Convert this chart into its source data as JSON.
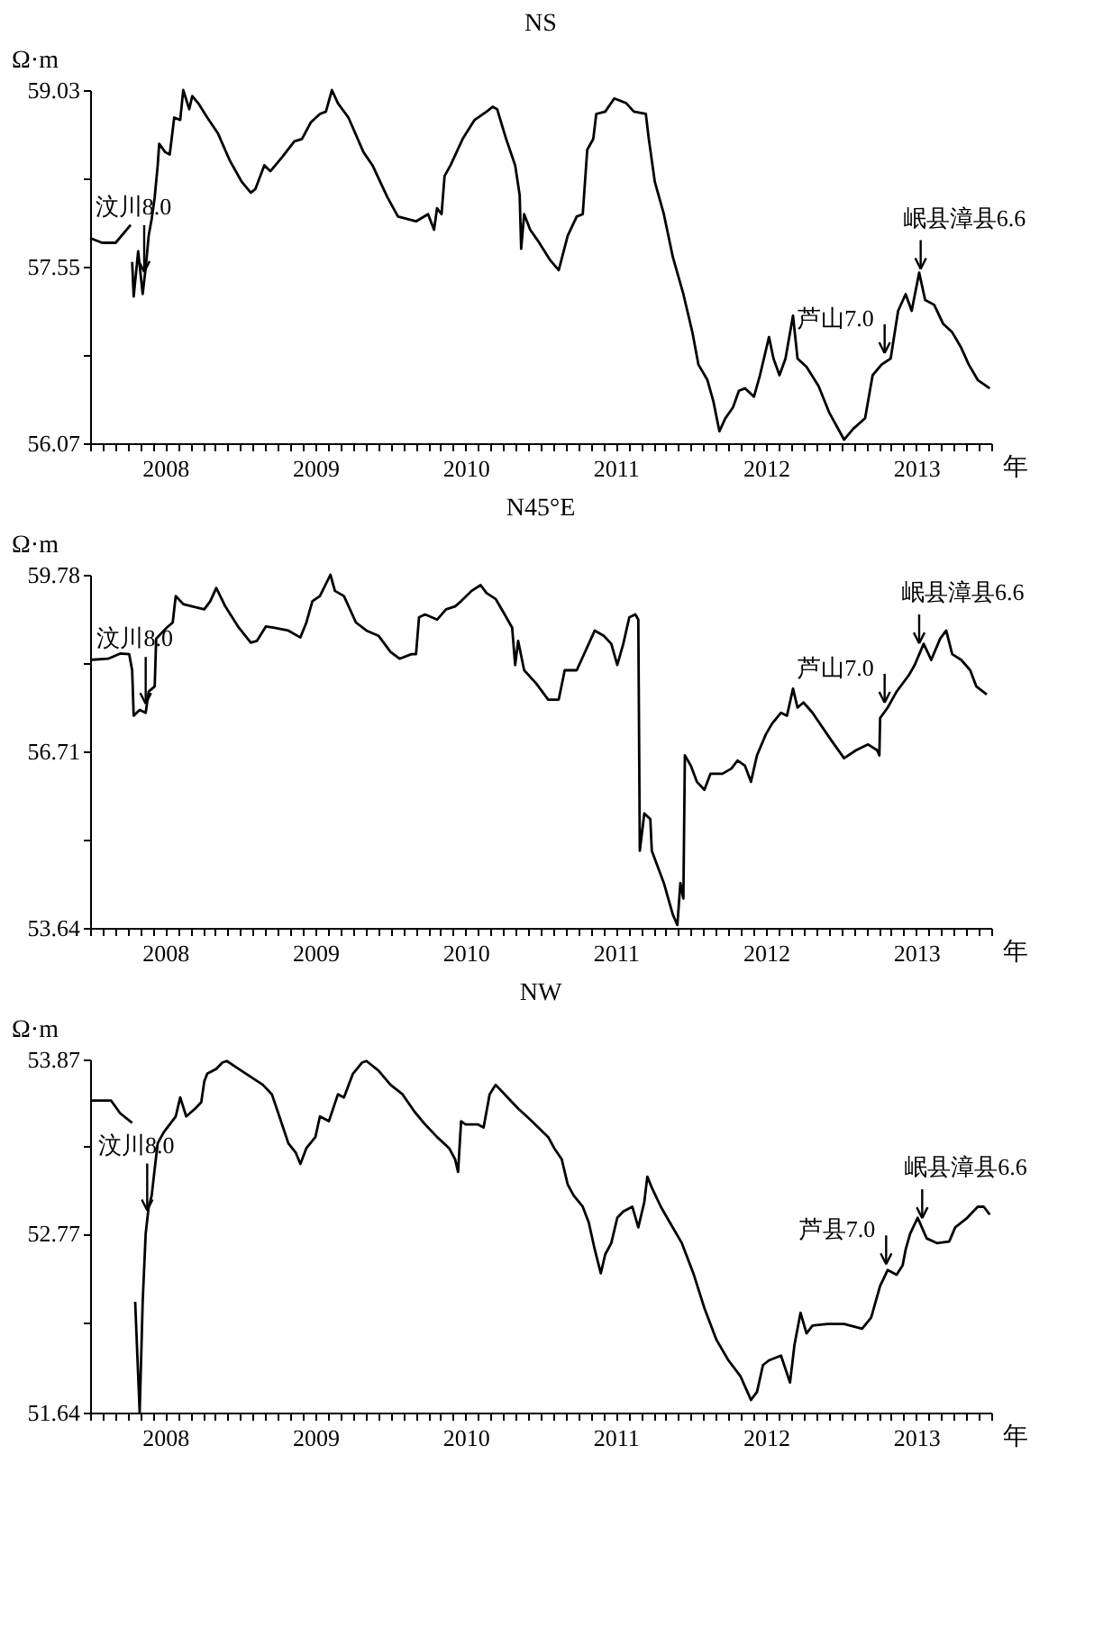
{
  "chart_data": [
    {
      "type": "line",
      "title": "NS",
      "ylabel": "Ω·m",
      "xlabel": "年",
      "x": [
        2008.0,
        2008.08,
        2008.17,
        2008.27,
        2008.275,
        2008.28,
        2008.29,
        2008.32,
        2008.35,
        2008.37,
        2008.39,
        2008.41,
        2008.43,
        2008.45,
        2008.46,
        2008.5,
        2008.53,
        2008.56,
        2008.6,
        2008.62,
        2008.66,
        2008.68,
        2008.72,
        2008.78,
        2008.85,
        2008.93,
        2009.01,
        2009.07,
        2009.1,
        2009.16,
        2009.2,
        2009.28,
        2009.36,
        2009.41,
        2009.47,
        2009.53,
        2009.57,
        2009.61,
        2009.65,
        2009.72,
        2009.82,
        2009.88,
        2009.98,
        2010.05,
        2010.17,
        2010.25,
        2010.29,
        2010.31,
        2010.34,
        2010.36,
        2010.4,
        2010.48,
        2010.56,
        2010.64,
        2010.68,
        2010.71,
        2010.77,
        2010.83,
        2010.86,
        2010.87,
        2010.89,
        2010.93,
        2010.98,
        2011.06,
        2011.12,
        2011.18,
        2011.24,
        2011.28,
        2011.31,
        2011.35,
        2011.37,
        2011.43,
        2011.49,
        2011.57,
        2011.62,
        2011.7,
        2011.72,
        2011.76,
        2011.82,
        2011.88,
        2011.95,
        2012.01,
        2012.05,
        2012.11,
        2012.15,
        2012.19,
        2012.23,
        2012.28,
        2012.32,
        2012.36,
        2012.42,
        2012.46,
        2012.52,
        2012.55,
        2012.59,
        2012.63,
        2012.68,
        2012.71,
        2012.77,
        2012.85,
        2012.92,
        2013.02,
        2013.08,
        2013.16,
        2013.21,
        2013.27,
        2013.33,
        2013.38,
        2013.43,
        2013.47,
        2013.52,
        2013.56,
        2013.62,
        2013.68,
        2013.74,
        2013.8,
        2013.85,
        2013.91,
        2013.99
      ],
      "series": [
        {
          "color": "#000000",
          "values": [
            57.79,
            57.75,
            57.75,
            57.9,
            null,
            57.59,
            57.3,
            57.68,
            57.32,
            57.54,
            57.81,
            57.95,
            58.13,
            58.4,
            58.58,
            58.51,
            58.49,
            58.8,
            58.78,
            59.03,
            58.87,
            58.98,
            58.92,
            58.8,
            58.67,
            58.44,
            58.26,
            58.17,
            58.2,
            58.4,
            58.35,
            58.47,
            58.6,
            58.62,
            58.76,
            58.83,
            58.85,
            59.03,
            58.92,
            58.8,
            58.51,
            58.4,
            58.13,
            57.97,
            57.93,
            57.99,
            57.86,
            58.04,
            57.99,
            58.31,
            58.4,
            58.62,
            58.78,
            58.85,
            58.89,
            58.87,
            58.62,
            58.4,
            58.15,
            57.7,
            57.99,
            57.86,
            57.77,
            57.61,
            57.52,
            57.81,
            57.97,
            57.99,
            58.53,
            58.62,
            58.83,
            58.85,
            58.96,
            58.92,
            58.85,
            58.83,
            58.62,
            58.26,
            57.99,
            57.63,
            57.32,
            57.0,
            56.73,
            56.6,
            56.42,
            56.17,
            56.28,
            56.37,
            56.51,
            56.53,
            56.46,
            56.64,
            56.96,
            56.78,
            56.64,
            56.78,
            57.14,
            56.78,
            56.71,
            56.55,
            56.33,
            56.1,
            56.19,
            56.28,
            56.64,
            56.73,
            56.78,
            57.18,
            57.32,
            57.18,
            57.5,
            57.27,
            57.23,
            57.07,
            57.0,
            56.87,
            56.73,
            56.6,
            56.53
          ]
        }
      ],
      "xlim": [
        2008,
        2014
      ],
      "xticks": [
        {
          "value": 2008,
          "label": null
        },
        {
          "value": 2008.083,
          "label": null
        },
        {
          "value": 2008.167,
          "label": null
        },
        {
          "value": 2008.25,
          "label": null
        },
        {
          "value": 2008.333,
          "label": null
        },
        {
          "value": 2008.417,
          "label": null
        },
        {
          "value": 2008.5,
          "label": "2008"
        },
        {
          "value": 2008.583,
          "label": null
        },
        {
          "value": 2008.667,
          "label": null
        },
        {
          "value": 2008.75,
          "label": null
        },
        {
          "value": 2008.833,
          "label": null
        },
        {
          "value": 2008.917,
          "label": null
        },
        {
          "value": 2009,
          "label": null
        },
        {
          "value": 2009.083,
          "label": null
        },
        {
          "value": 2009.167,
          "label": null
        },
        {
          "value": 2009.25,
          "label": null
        },
        {
          "value": 2009.333,
          "label": null
        },
        {
          "value": 2009.417,
          "label": null
        },
        {
          "value": 2009.5,
          "label": "2009"
        },
        {
          "value": 2009.583,
          "label": null
        },
        {
          "value": 2009.667,
          "label": null
        },
        {
          "value": 2009.75,
          "label": null
        },
        {
          "value": 2009.833,
          "label": null
        },
        {
          "value": 2009.917,
          "label": null
        },
        {
          "value": 2010,
          "label": null
        },
        {
          "value": 2010.083,
          "label": null
        },
        {
          "value": 2010.167,
          "label": null
        },
        {
          "value": 2010.25,
          "label": null
        },
        {
          "value": 2010.333,
          "label": null
        },
        {
          "value": 2010.417,
          "label": null
        },
        {
          "value": 2010.5,
          "label": "2010"
        },
        {
          "value": 2010.583,
          "label": null
        },
        {
          "value": 2010.667,
          "label": null
        },
        {
          "value": 2010.75,
          "label": null
        },
        {
          "value": 2010.833,
          "label": null
        },
        {
          "value": 2010.917,
          "label": null
        },
        {
          "value": 2011,
          "label": null
        },
        {
          "value": 2011.083,
          "label": null
        },
        {
          "value": 2011.167,
          "label": null
        },
        {
          "value": 2011.25,
          "label": null
        },
        {
          "value": 2011.333,
          "label": null
        },
        {
          "value": 2011.417,
          "label": null
        },
        {
          "value": 2011.5,
          "label": "2011"
        },
        {
          "value": 2011.583,
          "label": null
        },
        {
          "value": 2011.667,
          "label": null
        },
        {
          "value": 2011.75,
          "label": null
        },
        {
          "value": 2011.833,
          "label": null
        },
        {
          "value": 2011.917,
          "label": null
        },
        {
          "value": 2012,
          "label": null
        },
        {
          "value": 2012.083,
          "label": null
        },
        {
          "value": 2012.167,
          "label": null
        },
        {
          "value": 2012.25,
          "label": null
        },
        {
          "value": 2012.333,
          "label": null
        },
        {
          "value": 2012.417,
          "label": null
        },
        {
          "value": 2012.5,
          "label": "2012"
        },
        {
          "value": 2012.583,
          "label": null
        },
        {
          "value": 2012.667,
          "label": null
        },
        {
          "value": 2012.75,
          "label": null
        },
        {
          "value": 2012.833,
          "label": null
        },
        {
          "value": 2012.917,
          "label": null
        },
        {
          "value": 2013,
          "label": null
        },
        {
          "value": 2013.083,
          "label": null
        },
        {
          "value": 2013.167,
          "label": null
        },
        {
          "value": 2013.25,
          "label": null
        },
        {
          "value": 2013.333,
          "label": null
        },
        {
          "value": 2013.417,
          "label": null
        },
        {
          "value": 2013.5,
          "label": "2013"
        },
        {
          "value": 2013.583,
          "label": null
        },
        {
          "value": 2013.667,
          "label": null
        },
        {
          "value": 2013.75,
          "label": null
        },
        {
          "value": 2013.833,
          "label": null
        },
        {
          "value": 2013.917,
          "label": null
        },
        {
          "value": 2014,
          "label": null
        }
      ],
      "ylim": [
        56.07,
        59.03
      ],
      "yticks": [
        56.07,
        {
          "value": 56.81,
          "label": null
        },
        57.55,
        {
          "value": 58.29,
          "label": null
        },
        59.03
      ],
      "annotations": [
        {
          "text": "汶川8.0",
          "x": 2008.36,
          "y": 57.43
        },
        {
          "text": "芦山7.0",
          "x": 2013.29,
          "y": 56.75
        },
        {
          "text": "岷县漳县6.6",
          "x": 2013.53,
          "y": 57.44
        }
      ]
    },
    {
      "type": "line",
      "title": "N45°E",
      "ylabel": "Ω·m",
      "xlabel": "年",
      "x": [
        2008.0,
        2008.12,
        2008.2,
        2008.26,
        2008.28,
        2008.29,
        2008.33,
        2008.37,
        2008.39,
        2008.43,
        2008.44,
        2008.51,
        2008.55,
        2008.57,
        2008.62,
        2008.68,
        2008.76,
        2008.8,
        2008.84,
        2008.9,
        2008.99,
        2009.07,
        2009.11,
        2009.17,
        2009.22,
        2009.32,
        2009.4,
        2009.44,
        2009.48,
        2009.53,
        2009.6,
        2009.63,
        2009.69,
        2009.77,
        2009.84,
        2009.92,
        2010.0,
        2010.06,
        2010.14,
        2010.17,
        2010.19,
        2010.23,
        2010.31,
        2010.37,
        2010.43,
        2010.47,
        2010.54,
        2010.6,
        2010.64,
        2010.7,
        2010.76,
        2010.81,
        2010.83,
        2010.85,
        2010.89,
        2010.97,
        2011.05,
        2011.12,
        2011.16,
        2011.24,
        2011.32,
        2011.36,
        2011.42,
        2011.47,
        2011.51,
        2011.55,
        2011.59,
        2011.63,
        2011.65,
        2011.66,
        2011.69,
        2011.73,
        2011.74,
        2011.82,
        2011.88,
        2011.91,
        2011.93,
        2011.95,
        2011.96,
        2012.0,
        2012.04,
        2012.09,
        2012.13,
        2012.21,
        2012.27,
        2012.31,
        2012.36,
        2012.4,
        2012.44,
        2012.5,
        2012.54,
        2012.6,
        2012.64,
        2012.68,
        2012.71,
        2012.75,
        2012.81,
        2012.93,
        2013.02,
        2013.1,
        2013.18,
        2013.24,
        2013.255,
        2013.26,
        2013.31,
        2013.37,
        2013.45,
        2013.49,
        2013.55,
        2013.6,
        2013.66,
        2013.7,
        2013.74,
        2013.8,
        2013.86,
        2013.9,
        2013.97
      ],
      "series": [
        {
          "color": "#000000",
          "values": [
            58.3,
            58.32,
            58.41,
            58.4,
            58.12,
            57.33,
            57.43,
            57.38,
            57.75,
            57.84,
            58.67,
            58.86,
            58.95,
            59.41,
            59.27,
            59.23,
            59.18,
            59.32,
            59.55,
            59.23,
            58.86,
            58.6,
            58.63,
            58.88,
            58.86,
            58.81,
            58.69,
            58.95,
            59.32,
            59.41,
            59.78,
            59.5,
            59.41,
            58.95,
            58.81,
            58.72,
            58.44,
            58.32,
            58.4,
            58.4,
            59.04,
            59.09,
            59.0,
            59.18,
            59.23,
            59.32,
            59.5,
            59.6,
            59.46,
            59.36,
            59.09,
            58.86,
            58.21,
            58.63,
            58.12,
            57.89,
            57.61,
            57.61,
            58.12,
            58.12,
            58.58,
            58.81,
            58.72,
            58.58,
            58.21,
            58.58,
            59.04,
            59.09,
            59.0,
            54.98,
            55.63,
            55.53,
            54.98,
            54.42,
            53.87,
            53.69,
            54.42,
            54.15,
            56.64,
            56.46,
            56.18,
            56.04,
            56.32,
            56.32,
            56.41,
            56.55,
            56.46,
            56.18,
            56.64,
            57.01,
            57.19,
            57.38,
            57.33,
            57.8,
            57.47,
            57.56,
            57.38,
            56.92,
            56.59,
            56.73,
            56.83,
            56.73,
            56.64,
            57.29,
            57.47,
            57.75,
            58.03,
            58.21,
            58.58,
            58.3,
            58.67,
            58.81,
            58.4,
            58.3,
            58.12,
            57.84,
            57.7
          ]
        }
      ],
      "xlim": [
        2008,
        2014
      ],
      "xticks": [
        {
          "value": 2008,
          "label": null
        },
        {
          "value": 2008.083,
          "label": null
        },
        {
          "value": 2008.167,
          "label": null
        },
        {
          "value": 2008.25,
          "label": null
        },
        {
          "value": 2008.333,
          "label": null
        },
        {
          "value": 2008.417,
          "label": null
        },
        {
          "value": 2008.5,
          "label": "2008"
        },
        {
          "value": 2008.583,
          "label": null
        },
        {
          "value": 2008.667,
          "label": null
        },
        {
          "value": 2008.75,
          "label": null
        },
        {
          "value": 2008.833,
          "label": null
        },
        {
          "value": 2008.917,
          "label": null
        },
        {
          "value": 2009,
          "label": null
        },
        {
          "value": 2009.083,
          "label": null
        },
        {
          "value": 2009.167,
          "label": null
        },
        {
          "value": 2009.25,
          "label": null
        },
        {
          "value": 2009.333,
          "label": null
        },
        {
          "value": 2009.417,
          "label": null
        },
        {
          "value": 2009.5,
          "label": "2009"
        },
        {
          "value": 2009.583,
          "label": null
        },
        {
          "value": 2009.667,
          "label": null
        },
        {
          "value": 2009.75,
          "label": null
        },
        {
          "value": 2009.833,
          "label": null
        },
        {
          "value": 2009.917,
          "label": null
        },
        {
          "value": 2010,
          "label": null
        },
        {
          "value": 2010.083,
          "label": null
        },
        {
          "value": 2010.167,
          "label": null
        },
        {
          "value": 2010.25,
          "label": null
        },
        {
          "value": 2010.333,
          "label": null
        },
        {
          "value": 2010.417,
          "label": null
        },
        {
          "value": 2010.5,
          "label": "2010"
        },
        {
          "value": 2010.583,
          "label": null
        },
        {
          "value": 2010.667,
          "label": null
        },
        {
          "value": 2010.75,
          "label": null
        },
        {
          "value": 2010.833,
          "label": null
        },
        {
          "value": 2010.917,
          "label": null
        },
        {
          "value": 2011,
          "label": null
        },
        {
          "value": 2011.083,
          "label": null
        },
        {
          "value": 2011.167,
          "label": null
        },
        {
          "value": 2011.25,
          "label": null
        },
        {
          "value": 2011.333,
          "label": null
        },
        {
          "value": 2011.417,
          "label": null
        },
        {
          "value": 2011.5,
          "label": "2011"
        },
        {
          "value": 2011.583,
          "label": null
        },
        {
          "value": 2011.667,
          "label": null
        },
        {
          "value": 2011.75,
          "label": null
        },
        {
          "value": 2011.833,
          "label": null
        },
        {
          "value": 2011.917,
          "label": null
        },
        {
          "value": 2012,
          "label": null
        },
        {
          "value": 2012.083,
          "label": null
        },
        {
          "value": 2012.167,
          "label": null
        },
        {
          "value": 2012.25,
          "label": null
        },
        {
          "value": 2012.333,
          "label": null
        },
        {
          "value": 2012.417,
          "label": null
        },
        {
          "value": 2012.5,
          "label": "2012"
        },
        {
          "value": 2012.583,
          "label": null
        },
        {
          "value": 2012.667,
          "label": null
        },
        {
          "value": 2012.75,
          "label": null
        },
        {
          "value": 2012.833,
          "label": null
        },
        {
          "value": 2012.917,
          "label": null
        },
        {
          "value": 2013,
          "label": null
        },
        {
          "value": 2013.083,
          "label": null
        },
        {
          "value": 2013.167,
          "label": null
        },
        {
          "value": 2013.25,
          "label": null
        },
        {
          "value": 2013.333,
          "label": null
        },
        {
          "value": 2013.417,
          "label": null
        },
        {
          "value": 2013.5,
          "label": "2013"
        },
        {
          "value": 2013.583,
          "label": null
        },
        {
          "value": 2013.667,
          "label": null
        },
        {
          "value": 2013.75,
          "label": null
        },
        {
          "value": 2013.833,
          "label": null
        },
        {
          "value": 2013.917,
          "label": null
        },
        {
          "value": 2014,
          "label": null
        }
      ],
      "ylim": [
        53.64,
        59.78
      ],
      "yticks": [
        53.64,
        {
          "value": 55.175,
          "label": null
        },
        56.71,
        {
          "value": 58.245,
          "label": null
        },
        59.78
      ],
      "annotations": [
        {
          "text": "汶川8.0",
          "x": 2008.37,
          "y": 57.38
        },
        {
          "text": "芦山7.0",
          "x": 2013.29,
          "y": 57.4
        },
        {
          "text": "岷县漳县6.6",
          "x": 2013.52,
          "y": 58.4
        }
      ]
    },
    {
      "type": "line",
      "title": "NW",
      "ylabel": "Ω·m",
      "xlabel": "年",
      "x": [
        2008.0,
        2008.14,
        2008.2,
        2008.28,
        2008.29,
        2008.3,
        2008.33,
        2008.35,
        2008.37,
        2008.39,
        2008.41,
        2008.43,
        2008.45,
        2008.49,
        2008.53,
        2008.57,
        2008.6,
        2008.64,
        2008.7,
        2008.74,
        2008.76,
        2008.78,
        2008.84,
        2008.88,
        2008.91,
        2008.99,
        2009.07,
        2009.15,
        2009.21,
        2009.26,
        2009.32,
        2009.37,
        2009.4,
        2009.44,
        2009.5,
        2009.53,
        2009.59,
        2009.65,
        2009.69,
        2009.75,
        2009.81,
        2009.84,
        2009.92,
        2010.0,
        2010.08,
        2010.16,
        2010.23,
        2010.31,
        2010.39,
        2010.43,
        2010.45,
        2010.47,
        2010.5,
        2010.58,
        2010.62,
        2010.66,
        2010.7,
        2010.78,
        2010.85,
        2010.93,
        2011.05,
        2011.09,
        2011.14,
        2011.18,
        2011.22,
        2011.28,
        2011.32,
        2011.36,
        2011.4,
        2011.43,
        2011.47,
        2011.51,
        2011.55,
        2011.61,
        2011.65,
        2011.69,
        2011.71,
        2011.74,
        2011.8,
        2011.86,
        2011.94,
        2012.02,
        2012.09,
        2012.17,
        2012.25,
        2012.33,
        2012.4,
        2012.44,
        2012.48,
        2012.52,
        2012.6,
        2012.66,
        2012.69,
        2012.73,
        2012.77,
        2012.81,
        2012.91,
        2013.02,
        2013.14,
        2013.2,
        2013.26,
        2013.31,
        2013.37,
        2013.41,
        2013.43,
        2013.46,
        2013.51,
        2013.57,
        2013.64,
        2013.72,
        2013.76,
        2013.84,
        2013.91,
        2013.95,
        2013.99
      ],
      "series": [
        {
          "color": "#000000",
          "values": [
            53.61,
            53.61,
            53.53,
            53.47,
            null,
            52.34,
            51.64,
            52.34,
            52.77,
            52.94,
            53.01,
            53.18,
            53.34,
            53.41,
            53.46,
            53.51,
            53.63,
            53.51,
            53.56,
            53.6,
            53.73,
            53.78,
            53.81,
            53.85,
            53.86,
            53.81,
            53.76,
            53.71,
            53.65,
            53.51,
            53.34,
            53.28,
            53.21,
            53.31,
            53.38,
            53.51,
            53.48,
            53.65,
            53.63,
            53.78,
            53.85,
            53.86,
            53.8,
            53.71,
            53.65,
            53.54,
            53.46,
            53.38,
            53.31,
            53.24,
            53.16,
            53.48,
            53.46,
            53.46,
            53.44,
            53.65,
            53.71,
            53.63,
            53.56,
            53.49,
            53.38,
            53.31,
            53.24,
            53.08,
            53.01,
            52.94,
            52.84,
            52.67,
            52.52,
            52.64,
            52.71,
            52.87,
            52.91,
            52.94,
            52.81,
            52.97,
            53.13,
            53.06,
            52.94,
            52.84,
            52.71,
            52.51,
            52.3,
            52.1,
            51.97,
            51.87,
            51.72,
            51.77,
            51.94,
            51.97,
            52.0,
            51.83,
            52.07,
            52.27,
            52.14,
            52.19,
            52.2,
            52.2,
            52.17,
            52.24,
            52.44,
            52.54,
            52.51,
            52.57,
            52.67,
            52.77,
            52.87,
            52.74,
            52.71,
            52.72,
            52.81,
            52.87,
            52.94,
            52.94,
            52.89
          ]
        }
      ],
      "xlim": [
        2008,
        2014
      ],
      "xticks": [
        {
          "value": 2008,
          "label": null
        },
        {
          "value": 2008.083,
          "label": null
        },
        {
          "value": 2008.167,
          "label": null
        },
        {
          "value": 2008.25,
          "label": null
        },
        {
          "value": 2008.333,
          "label": null
        },
        {
          "value": 2008.417,
          "label": null
        },
        {
          "value": 2008.5,
          "label": "2008"
        },
        {
          "value": 2008.583,
          "label": null
        },
        {
          "value": 2008.667,
          "label": null
        },
        {
          "value": 2008.75,
          "label": null
        },
        {
          "value": 2008.833,
          "label": null
        },
        {
          "value": 2008.917,
          "label": null
        },
        {
          "value": 2009,
          "label": null
        },
        {
          "value": 2009.083,
          "label": null
        },
        {
          "value": 2009.167,
          "label": null
        },
        {
          "value": 2009.25,
          "label": null
        },
        {
          "value": 2009.333,
          "label": null
        },
        {
          "value": 2009.417,
          "label": null
        },
        {
          "value": 2009.5,
          "label": "2009"
        },
        {
          "value": 2009.583,
          "label": null
        },
        {
          "value": 2009.667,
          "label": null
        },
        {
          "value": 2009.75,
          "label": null
        },
        {
          "value": 2009.833,
          "label": null
        },
        {
          "value": 2009.917,
          "label": null
        },
        {
          "value": 2010,
          "label": null
        },
        {
          "value": 2010.083,
          "label": null
        },
        {
          "value": 2010.167,
          "label": null
        },
        {
          "value": 2010.25,
          "label": null
        },
        {
          "value": 2010.333,
          "label": null
        },
        {
          "value": 2010.417,
          "label": null
        },
        {
          "value": 2010.5,
          "label": "2010"
        },
        {
          "value": 2010.583,
          "label": null
        },
        {
          "value": 2010.667,
          "label": null
        },
        {
          "value": 2010.75,
          "label": null
        },
        {
          "value": 2010.833,
          "label": null
        },
        {
          "value": 2010.917,
          "label": null
        },
        {
          "value": 2011,
          "label": null
        },
        {
          "value": 2011.083,
          "label": null
        },
        {
          "value": 2011.167,
          "label": null
        },
        {
          "value": 2011.25,
          "label": null
        },
        {
          "value": 2011.333,
          "label": null
        },
        {
          "value": 2011.417,
          "label": null
        },
        {
          "value": 2011.5,
          "label": "2011"
        },
        {
          "value": 2011.583,
          "label": null
        },
        {
          "value": 2011.667,
          "label": null
        },
        {
          "value": 2011.75,
          "label": null
        },
        {
          "value": 2011.833,
          "label": null
        },
        {
          "value": 2011.917,
          "label": null
        },
        {
          "value": 2012,
          "label": null
        },
        {
          "value": 2012.083,
          "label": null
        },
        {
          "value": 2012.167,
          "label": null
        },
        {
          "value": 2012.25,
          "label": null
        },
        {
          "value": 2012.333,
          "label": null
        },
        {
          "value": 2012.417,
          "label": null
        },
        {
          "value": 2012.5,
          "label": "2012"
        },
        {
          "value": 2012.583,
          "label": null
        },
        {
          "value": 2012.667,
          "label": null
        },
        {
          "value": 2012.75,
          "label": null
        },
        {
          "value": 2012.833,
          "label": null
        },
        {
          "value": 2012.917,
          "label": null
        },
        {
          "value": 2013,
          "label": null
        },
        {
          "value": 2013.083,
          "label": null
        },
        {
          "value": 2013.167,
          "label": null
        },
        {
          "value": 2013.25,
          "label": null
        },
        {
          "value": 2013.333,
          "label": null
        },
        {
          "value": 2013.417,
          "label": null
        },
        {
          "value": 2013.5,
          "label": "2013"
        },
        {
          "value": 2013.583,
          "label": null
        },
        {
          "value": 2013.667,
          "label": null
        },
        {
          "value": 2013.75,
          "label": null
        },
        {
          "value": 2013.833,
          "label": null
        },
        {
          "value": 2013.917,
          "label": null
        },
        {
          "value": 2014,
          "label": null
        }
      ],
      "ylim": [
        51.64,
        53.87
      ],
      "yticks": [
        51.64,
        {
          "value": 52.205,
          "label": null
        },
        52.77,
        {
          "value": 53.32,
          "label": null
        },
        53.87
      ],
      "annotations": [
        {
          "text": "汶川8.0",
          "x": 2008.38,
          "y": 52.86
        },
        {
          "text": "芦县7.0",
          "x": 2013.3,
          "y": 52.52
        },
        {
          "text": "岷县漳县6.6",
          "x": 2013.54,
          "y": 52.8
        }
      ]
    }
  ]
}
